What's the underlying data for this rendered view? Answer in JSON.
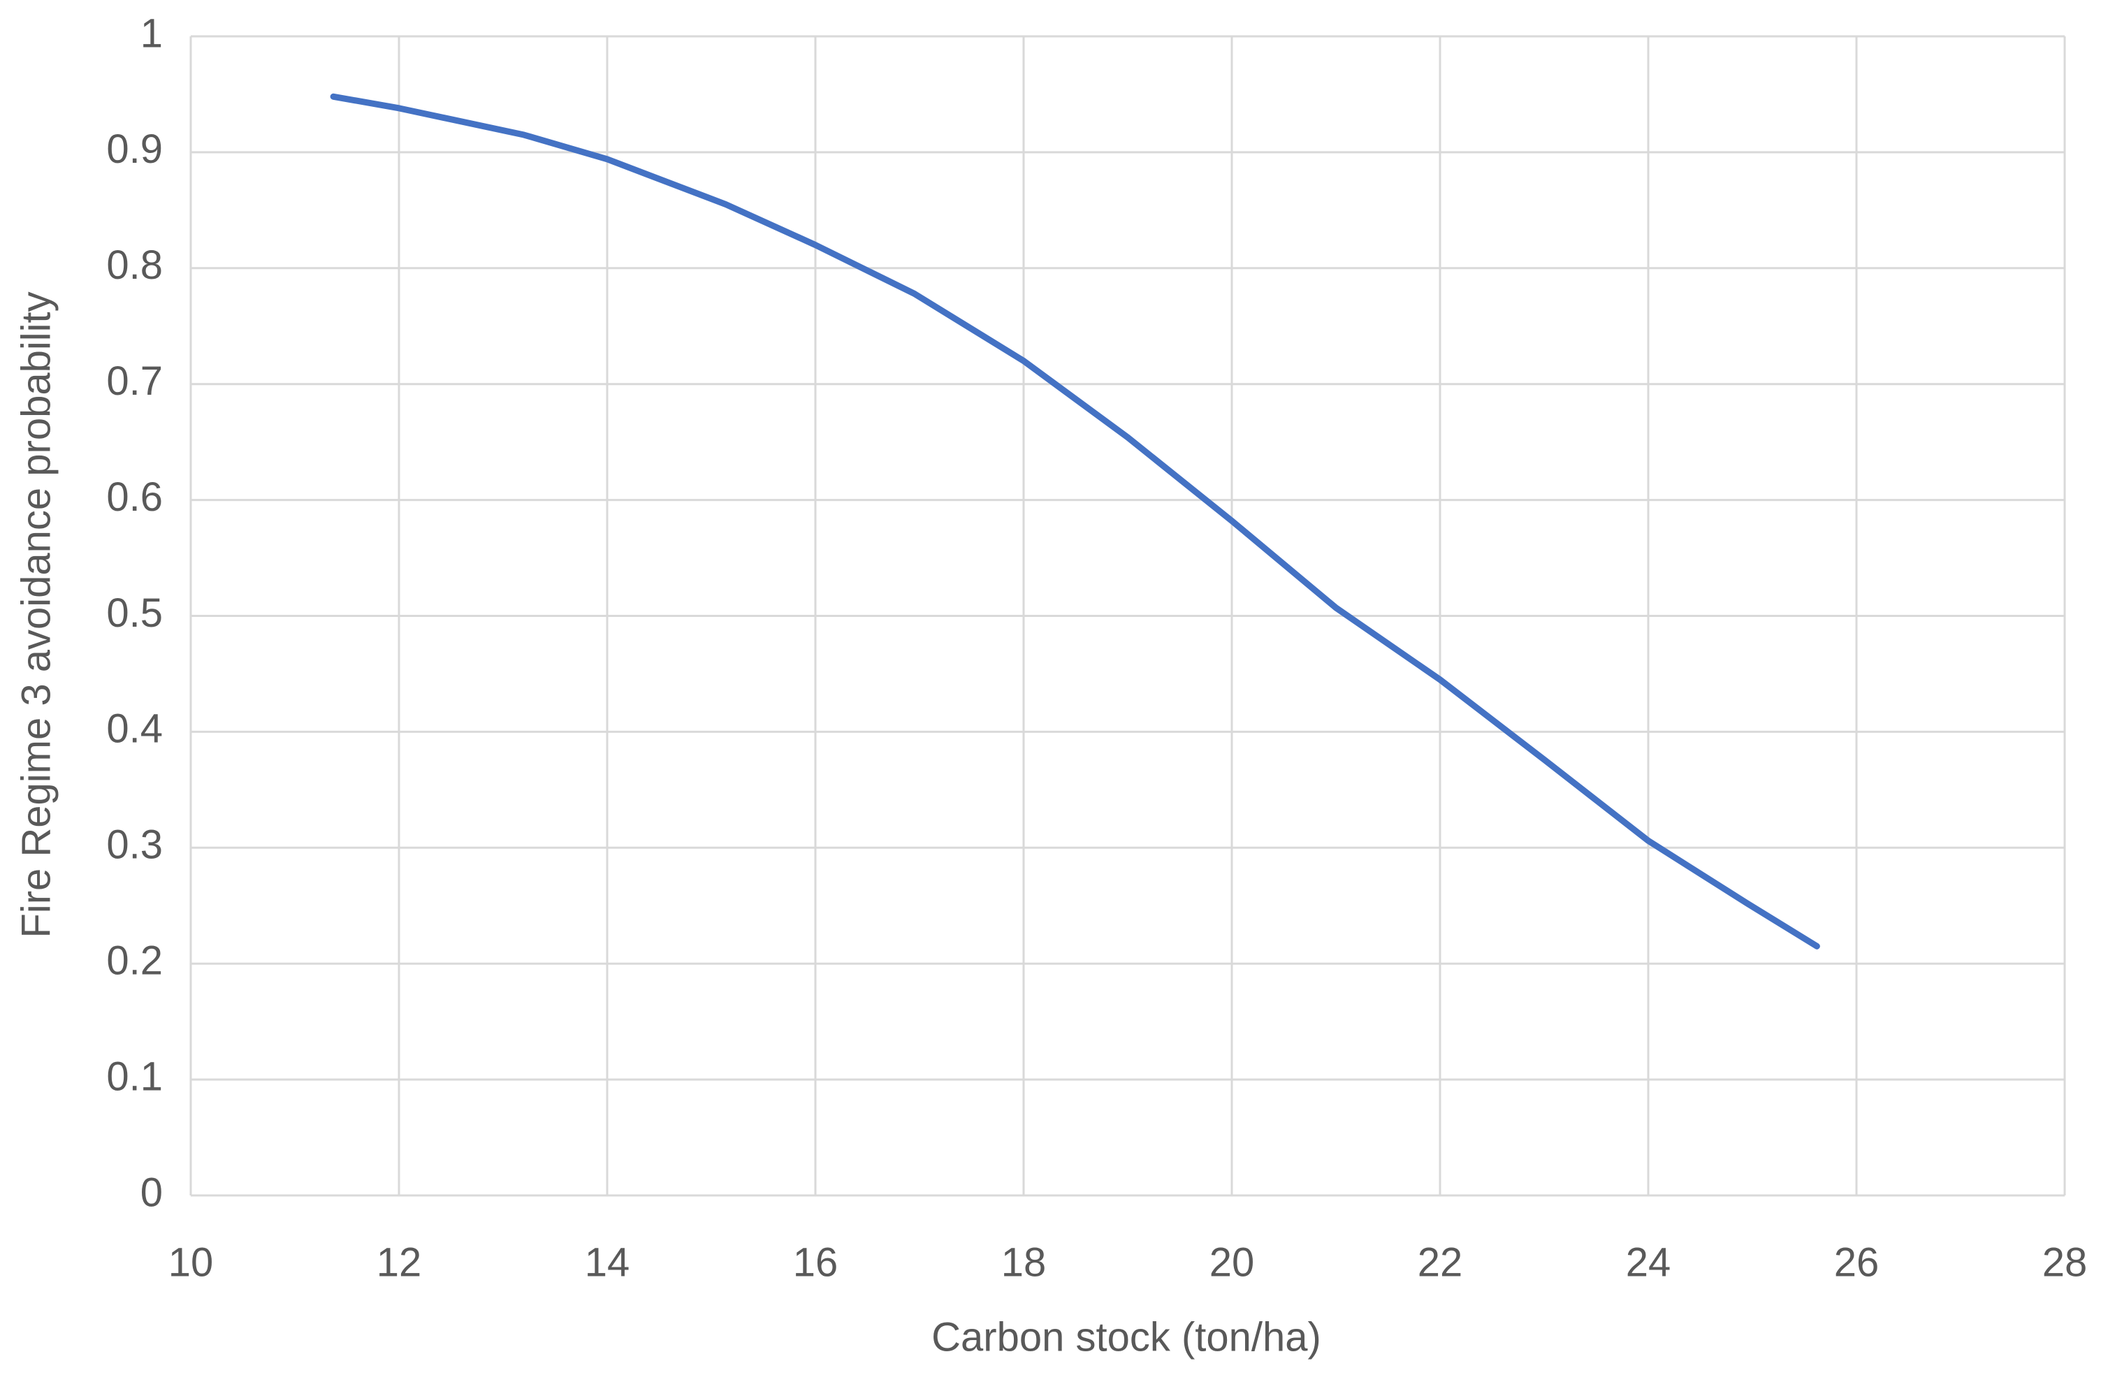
{
  "chart_data": {
    "type": "line",
    "x_label": "Carbon stock (ton/ha)",
    "y_label": "Fire Regime 3 avoidance probability",
    "x": [
      11.37,
      12,
      13.2,
      14,
      15.14,
      16,
      16.95,
      18,
      19,
      20,
      21,
      22,
      23,
      24,
      24.95,
      25.62
    ],
    "series": [
      {
        "name": "Fire Regime 3 avoidance probability",
        "color": "#4472c4",
        "values": [
          0.948,
          0.938,
          0.915,
          0.894,
          0.855,
          0.82,
          0.778,
          0.72,
          0.654,
          0.582,
          0.507,
          0.445,
          0.376,
          0.306,
          0.252,
          0.215
        ]
      }
    ],
    "xlim": [
      10,
      28
    ],
    "xticks": [
      10,
      12,
      14,
      16,
      18,
      20,
      22,
      24,
      26,
      28
    ],
    "ylim": [
      0,
      1
    ],
    "yticks": [
      0,
      0.1,
      0.2,
      0.3,
      0.4,
      0.5,
      0.6,
      0.7,
      0.8,
      0.9,
      1
    ],
    "grid": true
  }
}
